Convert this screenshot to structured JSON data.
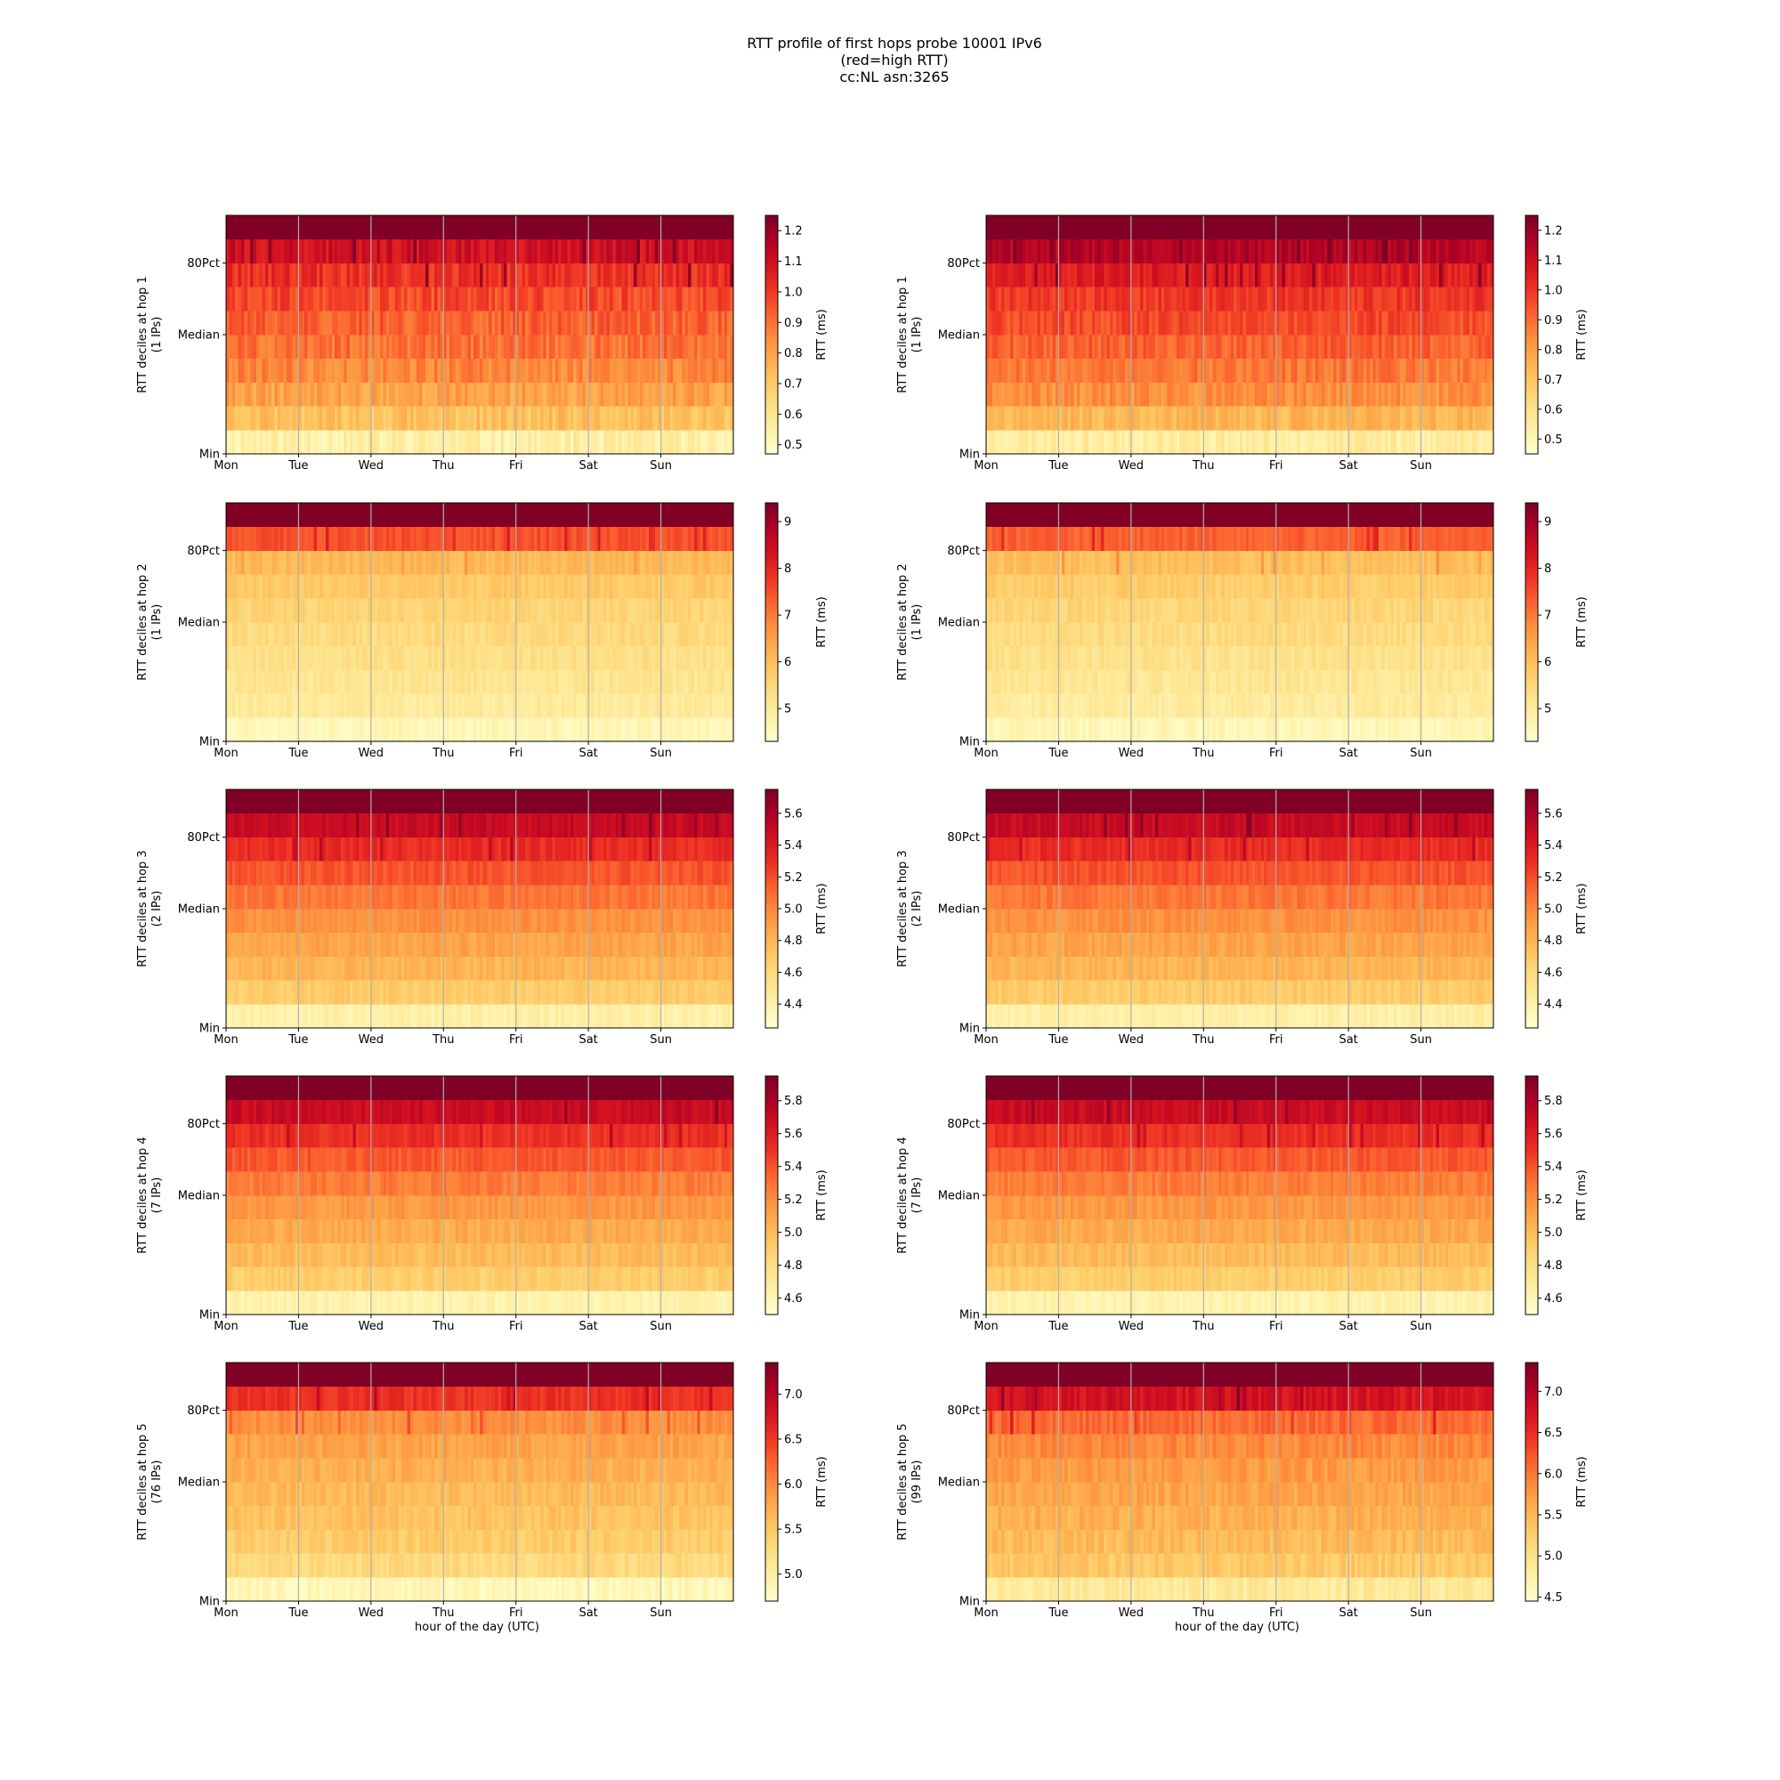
{
  "figure": {
    "title_lines": [
      "RTT profile of first hops probe 10001 IPv6",
      "(red=high RTT)",
      "cc:NL asn:3265"
    ],
    "xlabel": "hour of the day (UTC)",
    "x_tick_labels": [
      "Mon",
      "Tue",
      "Wed",
      "Thu",
      "Fri",
      "Sat",
      "Sun"
    ],
    "y_tick_labels": [
      "Min",
      "Median",
      "80Pct"
    ],
    "colorbar_label": "RTT (ms)",
    "colormap": [
      "#ffffcc",
      "#fff0a8",
      "#fee087",
      "#fec965",
      "#feab4b",
      "#fd893c",
      "#fa5c2e",
      "#ec3023",
      "#d31121",
      "#af0225",
      "#800026"
    ],
    "gridline_color": "#b0b0b0"
  },
  "chart_data": [
    {
      "type": "heatmap",
      "hop": 1,
      "ylabel": "RTT deciles at hop 1",
      "ylabel2": "(1 IPs)",
      "column": "left",
      "rows": 10,
      "cols": 168,
      "vmin": 0.47,
      "vmax": 1.25,
      "colorbar_ticks": [
        {
          "v": 0.5,
          "label": "0.5"
        },
        {
          "v": 0.6,
          "label": "0.6"
        },
        {
          "v": 0.7,
          "label": "0.7"
        },
        {
          "v": 0.8,
          "label": "0.8"
        },
        {
          "v": 0.9,
          "label": "0.9"
        },
        {
          "v": 1.0,
          "label": "1.0"
        },
        {
          "v": 1.1,
          "label": "1.1"
        },
        {
          "v": 1.2,
          "label": "1.2"
        }
      ],
      "decile_values": [
        0.55,
        0.72,
        0.8,
        0.86,
        0.9,
        0.93,
        0.97,
        1.02,
        1.1,
        1.26
      ],
      "noise": 0.055,
      "seed": 11
    },
    {
      "type": "heatmap",
      "hop": 1,
      "ylabel": "RTT deciles at hop 1",
      "ylabel2": "(1 IPs)",
      "column": "right",
      "rows": 10,
      "cols": 168,
      "vmin": 0.45,
      "vmax": 1.25,
      "colorbar_ticks": [
        {
          "v": 0.5,
          "label": "0.5"
        },
        {
          "v": 0.6,
          "label": "0.6"
        },
        {
          "v": 0.7,
          "label": "0.7"
        },
        {
          "v": 0.8,
          "label": "0.8"
        },
        {
          "v": 0.9,
          "label": "0.9"
        },
        {
          "v": 1.0,
          "label": "1.0"
        },
        {
          "v": 1.1,
          "label": "1.1"
        },
        {
          "v": 1.2,
          "label": "1.2"
        }
      ],
      "decile_values": [
        0.55,
        0.74,
        0.83,
        0.88,
        0.92,
        0.96,
        1.0,
        1.06,
        1.16,
        1.26
      ],
      "noise": 0.05,
      "seed": 23
    },
    {
      "type": "heatmap",
      "hop": 2,
      "ylabel": "RTT deciles at hop 2",
      "ylabel2": "(1 IPs)",
      "column": "left",
      "rows": 10,
      "cols": 168,
      "vmin": 4.3,
      "vmax": 9.4,
      "colorbar_ticks": [
        {
          "v": 5,
          "label": "5"
        },
        {
          "v": 6,
          "label": "6"
        },
        {
          "v": 7,
          "label": "7"
        },
        {
          "v": 8,
          "label": "8"
        },
        {
          "v": 9,
          "label": "9"
        }
      ],
      "decile_values": [
        4.6,
        5.0,
        5.15,
        5.3,
        5.45,
        5.6,
        5.8,
        6.1,
        7.5,
        9.5
      ],
      "noise": 0.2,
      "seed": 37
    },
    {
      "type": "heatmap",
      "hop": 2,
      "ylabel": "RTT deciles at hop 2",
      "ylabel2": "(1 IPs)",
      "column": "right",
      "rows": 10,
      "cols": 168,
      "vmin": 4.3,
      "vmax": 9.4,
      "colorbar_ticks": [
        {
          "v": 5,
          "label": "5"
        },
        {
          "v": 6,
          "label": "6"
        },
        {
          "v": 7,
          "label": "7"
        },
        {
          "v": 8,
          "label": "8"
        },
        {
          "v": 9,
          "label": "9"
        }
      ],
      "decile_values": [
        4.6,
        4.95,
        5.1,
        5.25,
        5.4,
        5.55,
        5.75,
        6.0,
        7.3,
        9.5
      ],
      "noise": 0.2,
      "seed": 41
    },
    {
      "type": "heatmap",
      "hop": 3,
      "ylabel": "RTT deciles at hop 3",
      "ylabel2": "(2 IPs)",
      "column": "left",
      "rows": 10,
      "cols": 168,
      "vmin": 4.25,
      "vmax": 5.75,
      "colorbar_ticks": [
        {
          "v": 4.4,
          "label": "4.4"
        },
        {
          "v": 4.6,
          "label": "4.6"
        },
        {
          "v": 4.8,
          "label": "4.8"
        },
        {
          "v": 5.0,
          "label": "5.0"
        },
        {
          "v": 5.2,
          "label": "5.2"
        },
        {
          "v": 5.4,
          "label": "5.4"
        },
        {
          "v": 5.6,
          "label": "5.6"
        }
      ],
      "decile_values": [
        4.4,
        4.68,
        4.8,
        4.88,
        4.96,
        5.06,
        5.18,
        5.32,
        5.5,
        5.8
      ],
      "noise": 0.06,
      "seed": 53
    },
    {
      "type": "heatmap",
      "hop": 3,
      "ylabel": "RTT deciles at hop 3",
      "ylabel2": "(2 IPs)",
      "column": "right",
      "rows": 10,
      "cols": 168,
      "vmin": 4.25,
      "vmax": 5.75,
      "colorbar_ticks": [
        {
          "v": 4.4,
          "label": "4.4"
        },
        {
          "v": 4.6,
          "label": "4.6"
        },
        {
          "v": 4.8,
          "label": "4.8"
        },
        {
          "v": 5.0,
          "label": "5.0"
        },
        {
          "v": 5.2,
          "label": "5.2"
        },
        {
          "v": 5.4,
          "label": "5.4"
        },
        {
          "v": 5.6,
          "label": "5.6"
        }
      ],
      "decile_values": [
        4.4,
        4.68,
        4.8,
        4.88,
        4.96,
        5.06,
        5.18,
        5.32,
        5.5,
        5.8
      ],
      "noise": 0.06,
      "seed": 61
    },
    {
      "type": "heatmap",
      "hop": 4,
      "ylabel": "RTT deciles at hop 4",
      "ylabel2": "(7 IPs)",
      "column": "left",
      "rows": 10,
      "cols": 168,
      "vmin": 4.5,
      "vmax": 5.95,
      "colorbar_ticks": [
        {
          "v": 4.6,
          "label": "4.6"
        },
        {
          "v": 4.8,
          "label": "4.8"
        },
        {
          "v": 5.0,
          "label": "5.0"
        },
        {
          "v": 5.2,
          "label": "5.2"
        },
        {
          "v": 5.4,
          "label": "5.4"
        },
        {
          "v": 5.6,
          "label": "5.6"
        },
        {
          "v": 5.8,
          "label": "5.8"
        }
      ],
      "decile_values": [
        4.62,
        4.9,
        5.0,
        5.08,
        5.16,
        5.26,
        5.38,
        5.52,
        5.7,
        6.0
      ],
      "noise": 0.06,
      "seed": 71
    },
    {
      "type": "heatmap",
      "hop": 4,
      "ylabel": "RTT deciles at hop 4",
      "ylabel2": "(7 IPs)",
      "column": "right",
      "rows": 10,
      "cols": 168,
      "vmin": 4.5,
      "vmax": 5.95,
      "colorbar_ticks": [
        {
          "v": 4.6,
          "label": "4.6"
        },
        {
          "v": 4.8,
          "label": "4.8"
        },
        {
          "v": 5.0,
          "label": "5.0"
        },
        {
          "v": 5.2,
          "label": "5.2"
        },
        {
          "v": 5.4,
          "label": "5.4"
        },
        {
          "v": 5.6,
          "label": "5.6"
        },
        {
          "v": 5.8,
          "label": "5.8"
        }
      ],
      "decile_values": [
        4.62,
        4.9,
        5.0,
        5.08,
        5.16,
        5.26,
        5.38,
        5.52,
        5.7,
        6.0
      ],
      "noise": 0.06,
      "seed": 79
    },
    {
      "type": "heatmap",
      "hop": 5,
      "ylabel": "RTT deciles at hop 5",
      "ylabel2": "(76 IPs)",
      "column": "left",
      "rows": 10,
      "cols": 168,
      "vmin": 4.7,
      "vmax": 7.35,
      "colorbar_ticks": [
        {
          "v": 5.0,
          "label": "5.0"
        },
        {
          "v": 5.5,
          "label": "5.5"
        },
        {
          "v": 6.0,
          "label": "6.0"
        },
        {
          "v": 6.5,
          "label": "6.5"
        },
        {
          "v": 7.0,
          "label": "7.0"
        }
      ],
      "decile_values": [
        4.85,
        5.3,
        5.45,
        5.55,
        5.63,
        5.72,
        5.82,
        5.98,
        6.55,
        7.4
      ],
      "noise": 0.12,
      "seed": 83
    },
    {
      "type": "heatmap",
      "hop": 5,
      "ylabel": "RTT deciles at hop 5",
      "ylabel2": "(99 IPs)",
      "column": "right",
      "rows": 10,
      "cols": 168,
      "vmin": 4.45,
      "vmax": 7.35,
      "colorbar_ticks": [
        {
          "v": 4.5,
          "label": "4.5"
        },
        {
          "v": 5.0,
          "label": "5.0"
        },
        {
          "v": 5.5,
          "label": "5.5"
        },
        {
          "v": 6.0,
          "label": "6.0"
        },
        {
          "v": 6.5,
          "label": "6.5"
        },
        {
          "v": 7.0,
          "label": "7.0"
        }
      ],
      "decile_values": [
        4.85,
        5.3,
        5.45,
        5.55,
        5.65,
        5.75,
        5.88,
        6.1,
        6.75,
        7.4
      ],
      "noise": 0.15,
      "seed": 97
    }
  ]
}
